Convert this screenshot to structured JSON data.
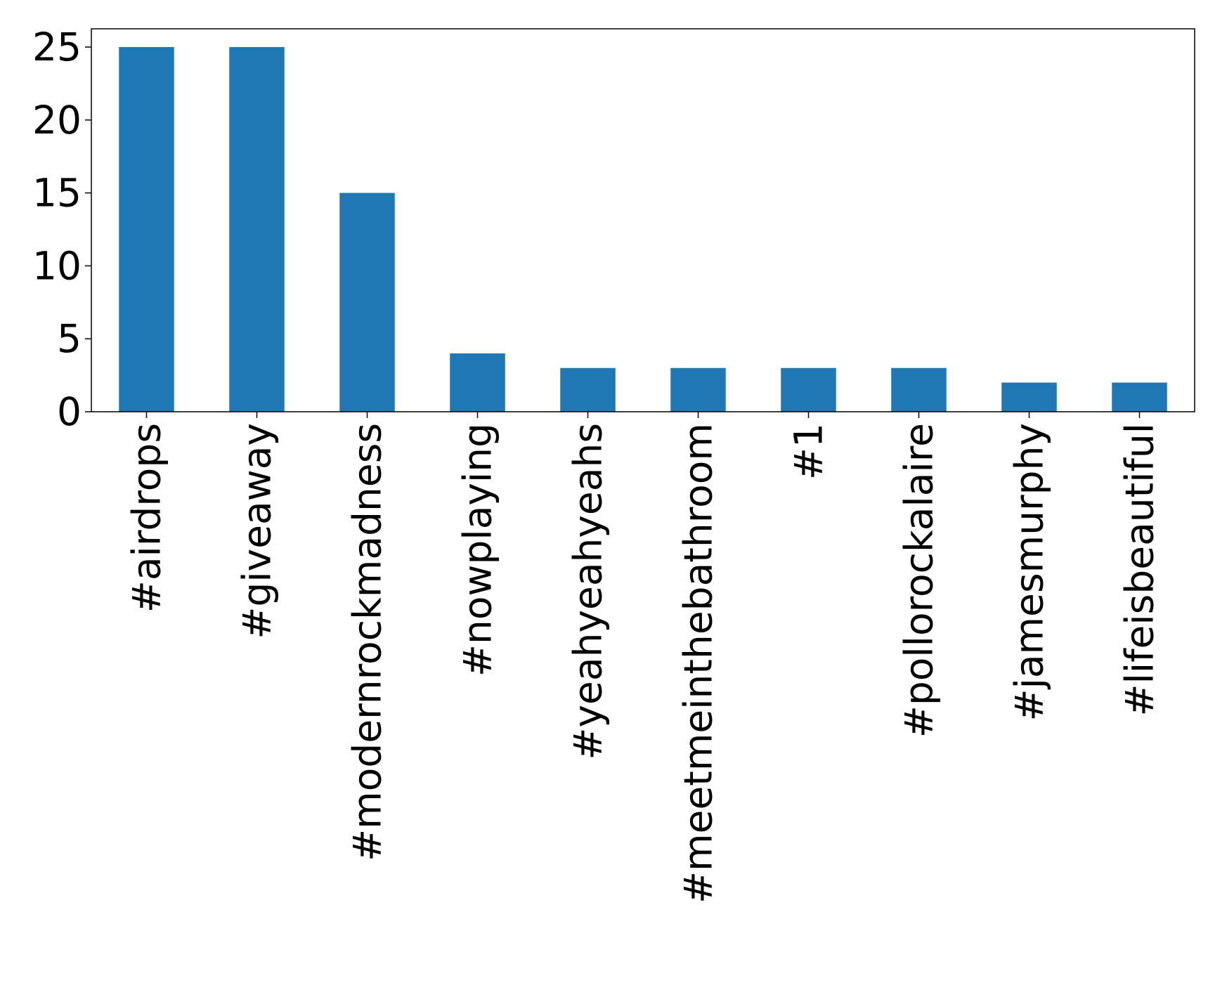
{
  "chart_data": {
    "type": "bar",
    "title": "",
    "xlabel": "",
    "ylabel": "",
    "categories": [
      "#airdrops",
      "#giveaway",
      "#modernrockmadness",
      "#nowplaying",
      "#yeahyeahyeahs",
      "#meetmeinthebathroom",
      "#1",
      "#pollorockalaire",
      "#jamesmurphy",
      "#lifeisbeautiful"
    ],
    "values": [
      25,
      25,
      15,
      4,
      3,
      3,
      3,
      3,
      2,
      2
    ],
    "ylim": [
      0,
      26.25
    ],
    "yticks": [
      0,
      5,
      10,
      15,
      20,
      25
    ],
    "bar_color": "#1f77b4",
    "grid": false,
    "legend": "none"
  }
}
